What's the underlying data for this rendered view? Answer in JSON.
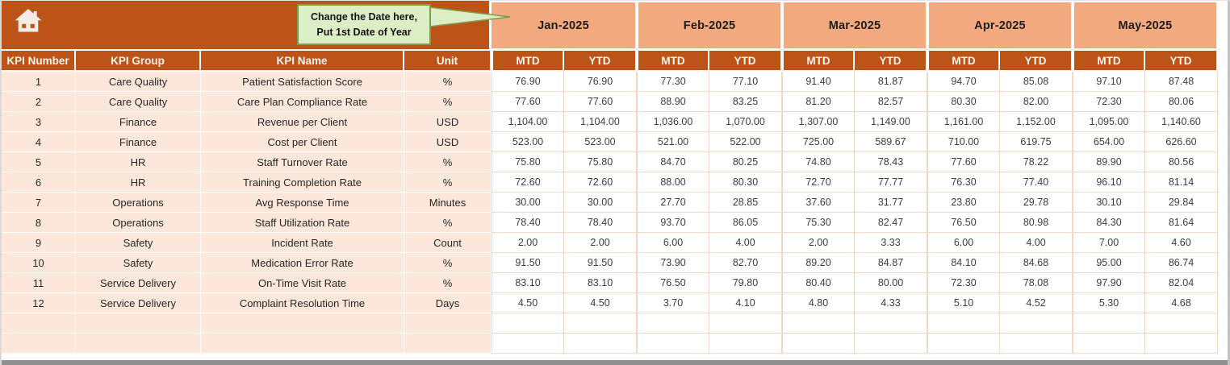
{
  "theme": {
    "accent": "#BC5418",
    "light": "#F2AA7E",
    "tint": "#FCE7DA",
    "line": "#F3D6C4",
    "callout_bg": "#DCEEC6",
    "callout_border": "#7E9C4D",
    "bar": "#8F8F8F"
  },
  "callout": {
    "line1": "Change the Date here,",
    "line2": "Put 1st Date of Year"
  },
  "icons": {
    "home": "home-icon"
  },
  "table": {
    "column_headers": [
      "KPI Number",
      "KPI Group",
      "KPI Name",
      "Unit"
    ],
    "months": [
      "Jan-2025",
      "Feb-2025",
      "Mar-2025",
      "Apr-2025",
      "May-2025"
    ],
    "sub_headers": [
      "MTD",
      "YTD"
    ],
    "empty_row_count": 2,
    "rows": [
      {
        "number": "1",
        "group": "Care Quality",
        "name": "Patient Satisfaction Score",
        "unit": "%",
        "values": [
          "76.90",
          "76.90",
          "77.30",
          "77.10",
          "91.40",
          "81.87",
          "94.70",
          "85.08",
          "97.10",
          "87.48"
        ]
      },
      {
        "number": "2",
        "group": "Care Quality",
        "name": "Care Plan Compliance Rate",
        "unit": "%",
        "values": [
          "77.60",
          "77.60",
          "88.90",
          "83.25",
          "81.20",
          "82.57",
          "80.30",
          "82.00",
          "72.30",
          "80.06"
        ]
      },
      {
        "number": "3",
        "group": "Finance",
        "name": "Revenue per Client",
        "unit": "USD",
        "values": [
          "1,104.00",
          "1,104.00",
          "1,036.00",
          "1,070.00",
          "1,307.00",
          "1,149.00",
          "1,161.00",
          "1,152.00",
          "1,095.00",
          "1,140.60"
        ]
      },
      {
        "number": "4",
        "group": "Finance",
        "name": "Cost per Client",
        "unit": "USD",
        "values": [
          "523.00",
          "523.00",
          "521.00",
          "522.00",
          "725.00",
          "589.67",
          "710.00",
          "619.75",
          "654.00",
          "626.60"
        ]
      },
      {
        "number": "5",
        "group": "HR",
        "name": "Staff Turnover Rate",
        "unit": "%",
        "values": [
          "75.80",
          "75.80",
          "84.70",
          "80.25",
          "74.80",
          "78.43",
          "77.60",
          "78.22",
          "89.90",
          "80.56"
        ]
      },
      {
        "number": "6",
        "group": "HR",
        "name": "Training Completion Rate",
        "unit": "%",
        "values": [
          "72.60",
          "72.60",
          "88.00",
          "80.30",
          "72.70",
          "77.77",
          "76.30",
          "77.40",
          "96.10",
          "81.14"
        ]
      },
      {
        "number": "7",
        "group": "Operations",
        "name": "Avg Response Time",
        "unit": "Minutes",
        "values": [
          "30.00",
          "30.00",
          "27.70",
          "28.85",
          "37.60",
          "31.77",
          "23.80",
          "29.78",
          "30.10",
          "29.84"
        ]
      },
      {
        "number": "8",
        "group": "Operations",
        "name": "Staff Utilization Rate",
        "unit": "%",
        "values": [
          "78.40",
          "78.40",
          "93.70",
          "86.05",
          "75.30",
          "82.47",
          "76.50",
          "80.98",
          "84.30",
          "81.64"
        ]
      },
      {
        "number": "9",
        "group": "Safety",
        "name": "Incident Rate",
        "unit": "Count",
        "values": [
          "2.00",
          "2.00",
          "6.00",
          "4.00",
          "2.00",
          "3.33",
          "6.00",
          "4.00",
          "7.00",
          "4.60"
        ]
      },
      {
        "number": "10",
        "group": "Safety",
        "name": "Medication Error Rate",
        "unit": "%",
        "values": [
          "91.50",
          "91.50",
          "73.90",
          "82.70",
          "89.20",
          "84.87",
          "84.10",
          "84.68",
          "95.00",
          "86.74"
        ]
      },
      {
        "number": "11",
        "group": "Service Delivery",
        "name": "On-Time Visit Rate",
        "unit": "%",
        "values": [
          "83.10",
          "83.10",
          "76.50",
          "79.80",
          "80.40",
          "80.00",
          "72.30",
          "78.08",
          "97.90",
          "82.04"
        ]
      },
      {
        "number": "12",
        "group": "Service Delivery",
        "name": "Complaint Resolution Time",
        "unit": "Days",
        "values": [
          "4.50",
          "4.50",
          "3.70",
          "4.10",
          "4.80",
          "4.33",
          "5.10",
          "4.52",
          "5.30",
          "4.68"
        ]
      }
    ]
  }
}
